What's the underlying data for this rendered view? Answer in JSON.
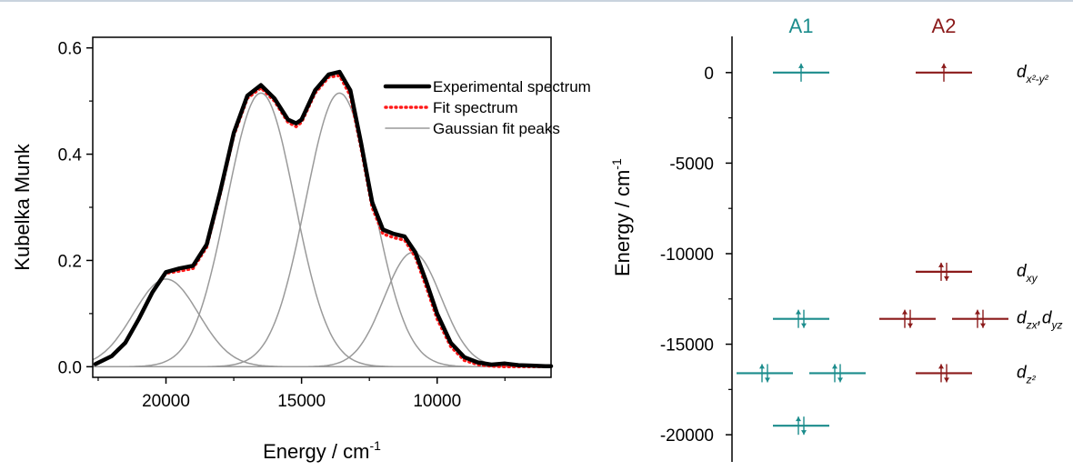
{
  "colors": {
    "a1": "#1b8c8c",
    "a2": "#8b1a1a",
    "experimental": "#000000",
    "fit": "#ff1a1a",
    "gaussian": "#9a9a9a"
  },
  "chart_data": [
    {
      "type": "line",
      "xlabel": "Energy / cm",
      "xlabel_sup": "-1",
      "ylabel": "Kubelka Munk",
      "xlim": [
        22700,
        5800
      ],
      "ylim": [
        -0.02,
        0.62
      ],
      "x_reversed": true,
      "xticks": [
        20000,
        15000,
        10000
      ],
      "xtick_labels": [
        "20000",
        "15000",
        "10000"
      ],
      "yticks": [
        0.0,
        0.2,
        0.4,
        0.6
      ],
      "ytick_labels": [
        "0.0",
        "0.2",
        "0.4",
        "0.6"
      ],
      "legend_position": "top-right",
      "series": [
        {
          "name": "Experimental spectrum",
          "style": "solid-thick",
          "x": [
            22600,
            22000,
            21500,
            21000,
            20500,
            20000,
            19500,
            19000,
            18500,
            18000,
            17500,
            17000,
            16500,
            16000,
            15500,
            15200,
            15000,
            14500,
            14000,
            13600,
            13200,
            12800,
            12400,
            12000,
            11600,
            11200,
            10800,
            10400,
            10000,
            9500,
            9000,
            8500,
            8000,
            7500,
            7000,
            6500,
            6000,
            5800
          ],
          "y": [
            0.005,
            0.02,
            0.045,
            0.09,
            0.14,
            0.178,
            0.185,
            0.19,
            0.23,
            0.33,
            0.44,
            0.51,
            0.53,
            0.505,
            0.465,
            0.458,
            0.465,
            0.52,
            0.55,
            0.555,
            0.52,
            0.42,
            0.31,
            0.258,
            0.25,
            0.245,
            0.215,
            0.16,
            0.1,
            0.045,
            0.018,
            0.008,
            0.004,
            0.006,
            0.003,
            0.002,
            0.001,
            0.001
          ]
        },
        {
          "name": "Fit spectrum",
          "style": "dotted",
          "x": [
            22600,
            22000,
            21500,
            21000,
            20500,
            20000,
            19500,
            19000,
            18500,
            18000,
            17500,
            17000,
            16500,
            16000,
            15500,
            15200,
            15000,
            14500,
            14000,
            13600,
            13200,
            12800,
            12400,
            12000,
            11600,
            11200,
            10800,
            10400,
            10000,
            9500,
            9000,
            8500,
            8000,
            7500,
            7000,
            6500,
            6000,
            5800
          ],
          "y": [
            0.005,
            0.02,
            0.045,
            0.09,
            0.14,
            0.176,
            0.18,
            0.185,
            0.225,
            0.325,
            0.435,
            0.505,
            0.525,
            0.5,
            0.46,
            0.452,
            0.46,
            0.515,
            0.545,
            0.548,
            0.51,
            0.41,
            0.3,
            0.25,
            0.243,
            0.238,
            0.206,
            0.15,
            0.09,
            0.038,
            0.012,
            0.004,
            0.001,
            0.0,
            0.0,
            0.0,
            0.0,
            0.0
          ]
        },
        {
          "name": "Gaussian fit peaks",
          "style": "thin",
          "peaks": [
            {
              "center": 20000,
              "amplitude": 0.165,
              "sigma": 1200
            },
            {
              "center": 16500,
              "amplitude": 0.515,
              "sigma": 1250
            },
            {
              "center": 13600,
              "amplitude": 0.515,
              "sigma": 1250
            },
            {
              "center": 10900,
              "amplitude": 0.215,
              "sigma": 1050
            }
          ]
        }
      ]
    },
    {
      "type": "energy-level-diagram",
      "ylabel": "Energy / cm",
      "ylabel_sup": "-1",
      "ylim": [
        -21500,
        2000
      ],
      "yticks": [
        0,
        -5000,
        -10000,
        -15000,
        -20000
      ],
      "ytick_labels": [
        "0",
        "-5000",
        "-10000",
        "-15000",
        "-20000"
      ],
      "columns": [
        {
          "name": "A1",
          "color": "teal"
        },
        {
          "name": "A2",
          "color": "darkred"
        }
      ],
      "levels": [
        {
          "column": "A1",
          "energy": 0,
          "electrons": 1,
          "count": 1
        },
        {
          "column": "A1",
          "energy": -13600,
          "electrons": 2,
          "count": 1
        },
        {
          "column": "A1",
          "energy": -16600,
          "electrons": 2,
          "count": 2
        },
        {
          "column": "A1",
          "energy": -19500,
          "electrons": 2,
          "count": 1
        },
        {
          "column": "A2",
          "energy": 0,
          "electrons": 1,
          "count": 1
        },
        {
          "column": "A2",
          "energy": -11000,
          "electrons": 2,
          "count": 1
        },
        {
          "column": "A2",
          "energy": -13600,
          "electrons": 2,
          "count": 2
        },
        {
          "column": "A2",
          "energy": -16600,
          "electrons": 2,
          "count": 1
        }
      ],
      "orbital_labels": [
        {
          "energy": 0,
          "main": "d",
          "sub": "x²-y²"
        },
        {
          "energy": -11000,
          "main": "d",
          "sub": "xy"
        },
        {
          "energy": -13600,
          "main": "d",
          "sub": "zx",
          "main2": "d",
          "sub2": "yz",
          "sep": ","
        },
        {
          "energy": -16600,
          "main": "d",
          "sub": "z²"
        }
      ]
    }
  ]
}
